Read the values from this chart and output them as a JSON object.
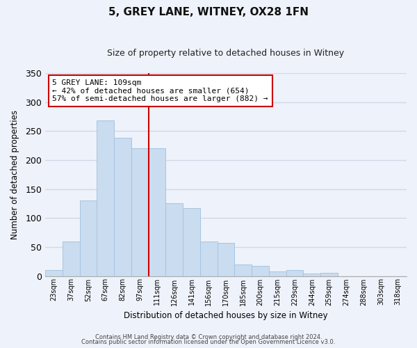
{
  "title": "5, GREY LANE, WITNEY, OX28 1FN",
  "subtitle": "Size of property relative to detached houses in Witney",
  "xlabel": "Distribution of detached houses by size in Witney",
  "ylabel": "Number of detached properties",
  "bar_labels": [
    "23sqm",
    "37sqm",
    "52sqm",
    "67sqm",
    "82sqm",
    "97sqm",
    "111sqm",
    "126sqm",
    "141sqm",
    "156sqm",
    "170sqm",
    "185sqm",
    "200sqm",
    "215sqm",
    "229sqm",
    "244sqm",
    "259sqm",
    "274sqm",
    "288sqm",
    "303sqm",
    "318sqm"
  ],
  "bar_values": [
    10,
    60,
    130,
    268,
    238,
    220,
    220,
    125,
    117,
    60,
    57,
    20,
    17,
    8,
    10,
    4,
    6,
    0,
    0,
    0,
    0
  ],
  "bar_color": "#c9dcf0",
  "bar_edge_color": "#a8c4e0",
  "vline_index": 6,
  "vline_color": "#cc0000",
  "annotation_title": "5 GREY LANE: 109sqm",
  "annotation_line1": "← 42% of detached houses are smaller (654)",
  "annotation_line2": "57% of semi-detached houses are larger (882) →",
  "annotation_box_facecolor": "#ffffff",
  "annotation_box_edgecolor": "#cc0000",
  "ylim": [
    0,
    350
  ],
  "yticks": [
    0,
    50,
    100,
    150,
    200,
    250,
    300,
    350
  ],
  "footer1": "Contains HM Land Registry data © Crown copyright and database right 2024.",
  "footer2": "Contains public sector information licensed under the Open Government Licence v3.0.",
  "bg_color": "#eef2fa",
  "grid_color": "#d0d8e8",
  "title_fontsize": 11,
  "subtitle_fontsize": 9
}
